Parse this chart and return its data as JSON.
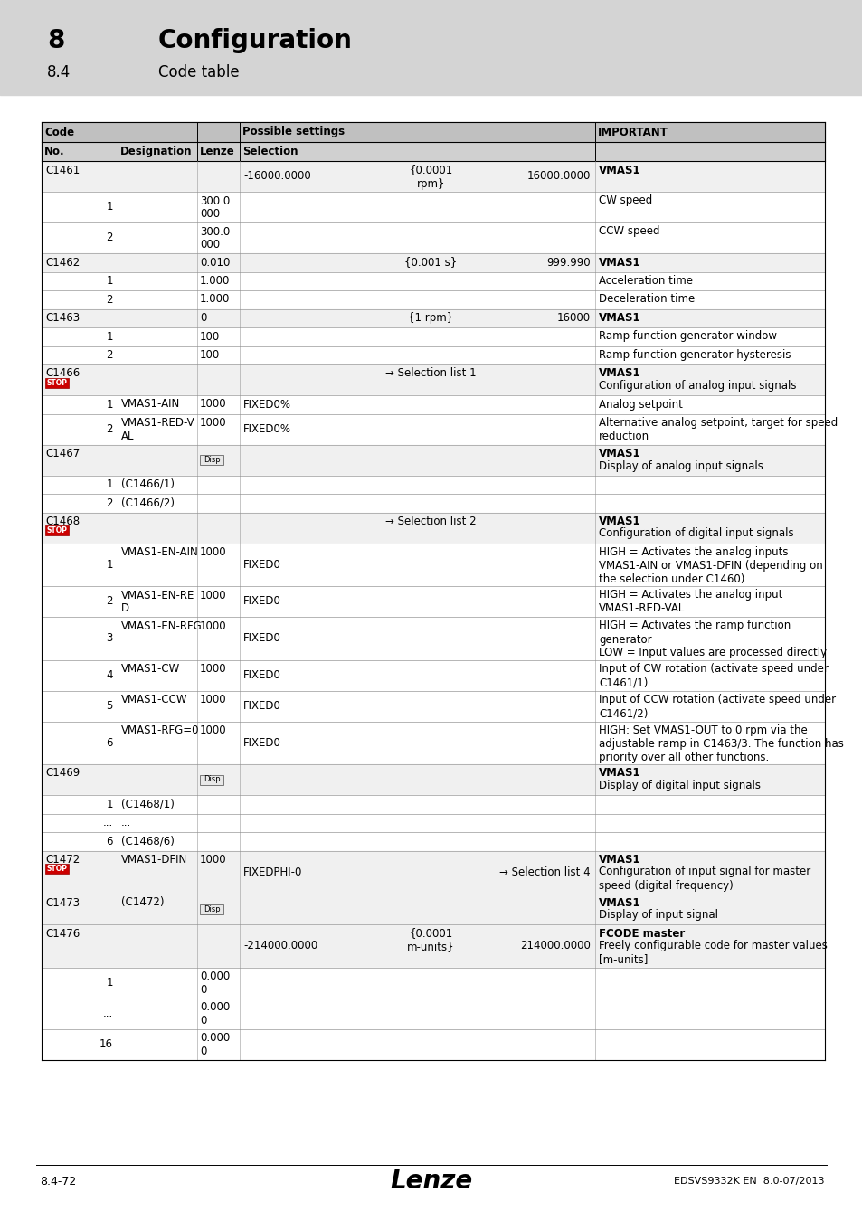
{
  "title_number": "8",
  "title_text": "Configuration",
  "subtitle_number": "8.4",
  "subtitle_text": "Code table",
  "footer_left": "8.4-72",
  "footer_center": "Lenze",
  "footer_right": "EDSVS9332K EN  8.0-07/2013",
  "rows": [
    {
      "code": "C1461",
      "no": "",
      "desig": "",
      "lenze": "",
      "sel_left": "-16000.0000",
      "sel_mid": "{0.0001\nrpm}",
      "sel_right": "16000.0000",
      "important": "VMAS1",
      "imp_bold": true,
      "imp_extra": "",
      "level": 0,
      "stop_icon": false,
      "disp_icon": false
    },
    {
      "code": "",
      "no": "1",
      "desig": "",
      "lenze": "300.0\n000",
      "sel_left": "",
      "sel_mid": "",
      "sel_right": "",
      "important": "CW speed",
      "imp_bold": false,
      "imp_extra": "",
      "level": 1,
      "stop_icon": false,
      "disp_icon": false
    },
    {
      "code": "",
      "no": "2",
      "desig": "",
      "lenze": "300.0\n000",
      "sel_left": "",
      "sel_mid": "",
      "sel_right": "",
      "important": "CCW speed",
      "imp_bold": false,
      "imp_extra": "",
      "level": 1,
      "stop_icon": false,
      "disp_icon": false
    },
    {
      "code": "C1462",
      "no": "",
      "desig": "",
      "lenze": "0.010",
      "sel_left": "",
      "sel_mid": "{0.001 s}",
      "sel_right": "999.990",
      "important": "VMAS1",
      "imp_bold": true,
      "imp_extra": "",
      "level": 0,
      "stop_icon": false,
      "disp_icon": false
    },
    {
      "code": "",
      "no": "1",
      "desig": "",
      "lenze": "1.000",
      "sel_left": "",
      "sel_mid": "",
      "sel_right": "",
      "important": "Acceleration time",
      "imp_bold": false,
      "imp_extra": "",
      "level": 1,
      "stop_icon": false,
      "disp_icon": false
    },
    {
      "code": "",
      "no": "2",
      "desig": "",
      "lenze": "1.000",
      "sel_left": "",
      "sel_mid": "",
      "sel_right": "",
      "important": "Deceleration time",
      "imp_bold": false,
      "imp_extra": "",
      "level": 1,
      "stop_icon": false,
      "disp_icon": false
    },
    {
      "code": "C1463",
      "no": "",
      "desig": "",
      "lenze": "0",
      "sel_left": "",
      "sel_mid": "{1 rpm}",
      "sel_right": "16000",
      "important": "VMAS1",
      "imp_bold": true,
      "imp_extra": "",
      "level": 0,
      "stop_icon": false,
      "disp_icon": false
    },
    {
      "code": "",
      "no": "1",
      "desig": "",
      "lenze": "100",
      "sel_left": "",
      "sel_mid": "",
      "sel_right": "",
      "important": "Ramp function generator window",
      "imp_bold": false,
      "imp_extra": "",
      "level": 1,
      "stop_icon": false,
      "disp_icon": false
    },
    {
      "code": "",
      "no": "2",
      "desig": "",
      "lenze": "100",
      "sel_left": "",
      "sel_mid": "",
      "sel_right": "",
      "important": "Ramp function generator hysteresis",
      "imp_bold": false,
      "imp_extra": "",
      "level": 1,
      "stop_icon": false,
      "disp_icon": false
    },
    {
      "code": "C1466",
      "no": "",
      "desig": "",
      "lenze": "",
      "sel_left": "",
      "sel_mid": "→ Selection list 1",
      "sel_right": "",
      "important": "VMAS1",
      "imp_bold": true,
      "imp_extra": "Configuration of analog input signals",
      "level": 0,
      "stop_icon": true,
      "disp_icon": false
    },
    {
      "code": "",
      "no": "1",
      "desig": "VMAS1-AIN",
      "lenze": "1000",
      "sel_left": "FIXED0%",
      "sel_mid": "",
      "sel_right": "",
      "important": "Analog setpoint",
      "imp_bold": false,
      "imp_extra": "",
      "level": 1,
      "stop_icon": false,
      "disp_icon": false
    },
    {
      "code": "",
      "no": "2",
      "desig": "VMAS1-RED-V\nAL",
      "lenze": "1000",
      "sel_left": "FIXED0%",
      "sel_mid": "",
      "sel_right": "",
      "important": "Alternative analog setpoint, target for speed\nreduction",
      "imp_bold": false,
      "imp_extra": "",
      "level": 1,
      "stop_icon": false,
      "disp_icon": false
    },
    {
      "code": "C1467",
      "no": "",
      "desig": "",
      "lenze": "",
      "sel_left": "",
      "sel_mid": "",
      "sel_right": "",
      "important": "VMAS1",
      "imp_bold": true,
      "imp_extra": "Display of analog input signals",
      "level": 0,
      "stop_icon": false,
      "disp_icon": true
    },
    {
      "code": "",
      "no": "1",
      "desig": "(C1466/1)",
      "lenze": "",
      "sel_left": "",
      "sel_mid": "",
      "sel_right": "",
      "important": "",
      "imp_bold": false,
      "imp_extra": "",
      "level": 1,
      "stop_icon": false,
      "disp_icon": false
    },
    {
      "code": "",
      "no": "2",
      "desig": "(C1466/2)",
      "lenze": "",
      "sel_left": "",
      "sel_mid": "",
      "sel_right": "",
      "important": "",
      "imp_bold": false,
      "imp_extra": "",
      "level": 1,
      "stop_icon": false,
      "disp_icon": false
    },
    {
      "code": "C1468",
      "no": "",
      "desig": "",
      "lenze": "",
      "sel_left": "",
      "sel_mid": "→ Selection list 2",
      "sel_right": "",
      "important": "VMAS1",
      "imp_bold": true,
      "imp_extra": "Configuration of digital input signals",
      "level": 0,
      "stop_icon": true,
      "disp_icon": false
    },
    {
      "code": "",
      "no": "1",
      "desig": "VMAS1-EN-AIN",
      "lenze": "1000",
      "sel_left": "FIXED0",
      "sel_mid": "",
      "sel_right": "",
      "important": "HIGH = Activates the analog inputs\nVMAS1-AIN or VMAS1-DFIN (depending on\nthe selection under C1460)",
      "imp_bold": false,
      "imp_extra": "",
      "level": 1,
      "stop_icon": false,
      "disp_icon": false
    },
    {
      "code": "",
      "no": "2",
      "desig": "VMAS1-EN-RE\nD",
      "lenze": "1000",
      "sel_left": "FIXED0",
      "sel_mid": "",
      "sel_right": "",
      "important": "HIGH = Activates the analog input\nVMAS1-RED-VAL",
      "imp_bold": false,
      "imp_extra": "",
      "level": 1,
      "stop_icon": false,
      "disp_icon": false
    },
    {
      "code": "",
      "no": "3",
      "desig": "VMAS1-EN-RFG",
      "lenze": "1000",
      "sel_left": "FIXED0",
      "sel_mid": "",
      "sel_right": "",
      "important": "HIGH = Activates the ramp function\ngenerator\nLOW = Input values are processed directly",
      "imp_bold": false,
      "imp_extra": "",
      "level": 1,
      "stop_icon": false,
      "disp_icon": false
    },
    {
      "code": "",
      "no": "4",
      "desig": "VMAS1-CW",
      "lenze": "1000",
      "sel_left": "FIXED0",
      "sel_mid": "",
      "sel_right": "",
      "important": "Input of CW rotation (activate speed under\nC1461/1)",
      "imp_bold": false,
      "imp_extra": "",
      "level": 1,
      "stop_icon": false,
      "disp_icon": false
    },
    {
      "code": "",
      "no": "5",
      "desig": "VMAS1-CCW",
      "lenze": "1000",
      "sel_left": "FIXED0",
      "sel_mid": "",
      "sel_right": "",
      "important": "Input of CCW rotation (activate speed under\nC1461/2)",
      "imp_bold": false,
      "imp_extra": "",
      "level": 1,
      "stop_icon": false,
      "disp_icon": false
    },
    {
      "code": "",
      "no": "6",
      "desig": "VMAS1-RFG=0",
      "lenze": "1000",
      "sel_left": "FIXED0",
      "sel_mid": "",
      "sel_right": "",
      "important": "HIGH: Set VMAS1-OUT to 0 rpm via the\nadjustable ramp in C1463/3. The function has\npriority over all other functions.",
      "imp_bold": false,
      "imp_extra": "",
      "level": 1,
      "stop_icon": false,
      "disp_icon": false
    },
    {
      "code": "C1469",
      "no": "",
      "desig": "",
      "lenze": "",
      "sel_left": "",
      "sel_mid": "",
      "sel_right": "",
      "important": "VMAS1",
      "imp_bold": true,
      "imp_extra": "Display of digital input signals",
      "level": 0,
      "stop_icon": false,
      "disp_icon": true
    },
    {
      "code": "",
      "no": "1",
      "desig": "(C1468/1)",
      "lenze": "",
      "sel_left": "",
      "sel_mid": "",
      "sel_right": "",
      "important": "",
      "imp_bold": false,
      "imp_extra": "",
      "level": 1,
      "stop_icon": false,
      "disp_icon": false
    },
    {
      "code": "",
      "no": "...",
      "desig": "...",
      "lenze": "",
      "sel_left": "",
      "sel_mid": "",
      "sel_right": "",
      "important": "",
      "imp_bold": false,
      "imp_extra": "",
      "level": 1,
      "stop_icon": false,
      "disp_icon": false
    },
    {
      "code": "",
      "no": "6",
      "desig": "(C1468/6)",
      "lenze": "",
      "sel_left": "",
      "sel_mid": "",
      "sel_right": "",
      "important": "",
      "imp_bold": false,
      "imp_extra": "",
      "level": 1,
      "stop_icon": false,
      "disp_icon": false
    },
    {
      "code": "C1472",
      "no": "",
      "desig": "VMAS1-DFIN",
      "lenze": "1000",
      "sel_left": "FIXEDPHI-0",
      "sel_mid": "",
      "sel_right": "→ Selection list 4",
      "important": "VMAS1",
      "imp_bold": true,
      "imp_extra": "Configuration of input signal for master\nspeed (digital frequency)",
      "level": 0,
      "stop_icon": true,
      "disp_icon": false
    },
    {
      "code": "C1473",
      "no": "",
      "desig": "(C1472)",
      "lenze": "",
      "sel_left": "",
      "sel_mid": "",
      "sel_right": "",
      "important": "VMAS1",
      "imp_bold": true,
      "imp_extra": "Display of input signal",
      "level": 0,
      "stop_icon": false,
      "disp_icon": true
    },
    {
      "code": "C1476",
      "no": "",
      "desig": "",
      "lenze": "",
      "sel_left": "-214000.0000",
      "sel_mid": "{0.0001\nm-units}",
      "sel_right": "214000.0000",
      "important": "FCODE master",
      "imp_bold": true,
      "imp_extra": "Freely configurable code for master values\n[m-units]",
      "level": 0,
      "stop_icon": false,
      "disp_icon": false
    },
    {
      "code": "",
      "no": "1",
      "desig": "",
      "lenze": "0.000\n0",
      "sel_left": "",
      "sel_mid": "",
      "sel_right": "",
      "important": "",
      "imp_bold": false,
      "imp_extra": "",
      "level": 1,
      "stop_icon": false,
      "disp_icon": false
    },
    {
      "code": "",
      "no": "...",
      "desig": "",
      "lenze": "0.000\n0",
      "sel_left": "",
      "sel_mid": "",
      "sel_right": "",
      "important": "",
      "imp_bold": false,
      "imp_extra": "",
      "level": 1,
      "stop_icon": false,
      "disp_icon": false
    },
    {
      "code": "",
      "no": "16",
      "desig": "",
      "lenze": "0.000\n0",
      "sel_left": "",
      "sel_mid": "",
      "sel_right": "",
      "important": "",
      "imp_bold": false,
      "imp_extra": "",
      "level": 1,
      "stop_icon": false,
      "disp_icon": false
    }
  ]
}
